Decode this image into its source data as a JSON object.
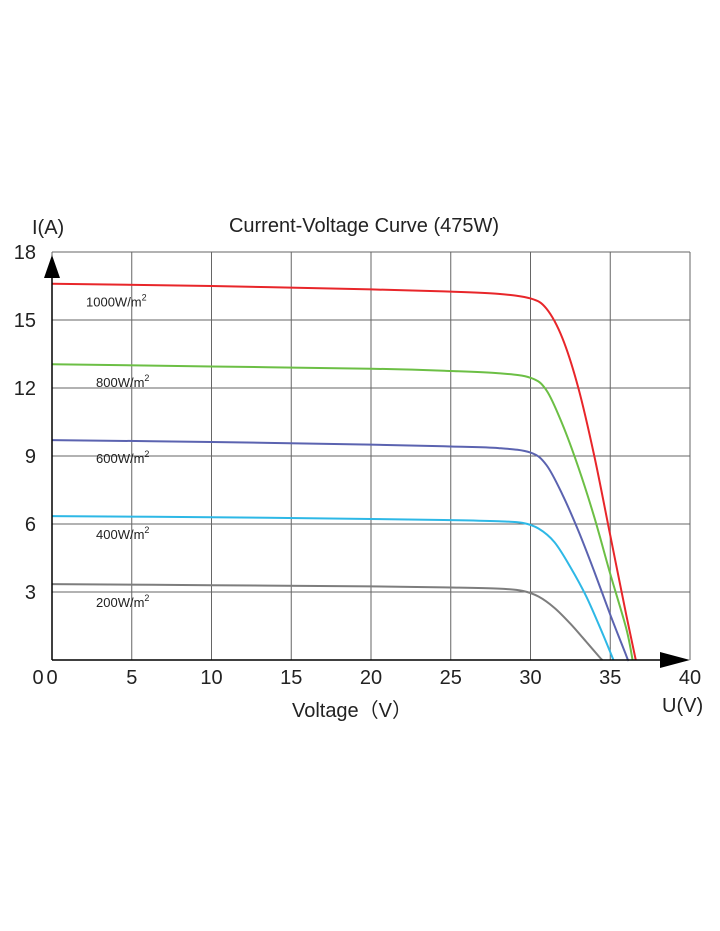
{
  "chart_data": {
    "type": "line",
    "title": "Current-Voltage  Curve (475W)",
    "xlabel": "Voltage（V）",
    "ylabel": "I(A)",
    "x_axis_end_label": "U(V)",
    "xlim": [
      0,
      40
    ],
    "ylim": [
      0,
      18
    ],
    "x_ticks": [
      "0",
      "5",
      "10",
      "15",
      "20",
      "25",
      "30",
      "35",
      "40"
    ],
    "y_ticks": [
      "18",
      "15",
      "12",
      "9",
      "6",
      "3"
    ],
    "grid": true,
    "series": [
      {
        "name": "1000W/m",
        "superscript": "2",
        "color": "#e8262a",
        "points": [
          [
            0,
            16.6
          ],
          [
            10,
            16.5
          ],
          [
            20,
            16.35
          ],
          [
            25,
            16.25
          ],
          [
            28,
            16.15
          ],
          [
            30,
            15.95
          ],
          [
            31,
            15.5
          ],
          [
            32,
            14.2
          ],
          [
            33,
            12.0
          ],
          [
            34,
            9.0
          ],
          [
            35,
            5.5
          ],
          [
            36,
            2.0
          ],
          [
            36.6,
            0
          ]
        ]
      },
      {
        "name": "800W/m",
        "superscript": "2",
        "color": "#6cbf45",
        "points": [
          [
            0,
            13.05
          ],
          [
            10,
            12.95
          ],
          [
            20,
            12.85
          ],
          [
            25,
            12.75
          ],
          [
            28,
            12.65
          ],
          [
            30,
            12.45
          ],
          [
            31,
            11.9
          ],
          [
            32,
            10.4
          ],
          [
            33,
            8.5
          ],
          [
            34,
            6.3
          ],
          [
            35,
            3.8
          ],
          [
            36,
            1.4
          ],
          [
            36.4,
            0
          ]
        ]
      },
      {
        "name": "600W/m",
        "superscript": "2",
        "color": "#5b63b0",
        "points": [
          [
            0,
            9.7
          ],
          [
            10,
            9.62
          ],
          [
            20,
            9.5
          ],
          [
            25,
            9.42
          ],
          [
            28,
            9.35
          ],
          [
            30,
            9.15
          ],
          [
            31,
            8.6
          ],
          [
            32,
            7.3
          ],
          [
            33,
            5.7
          ],
          [
            34,
            3.9
          ],
          [
            35,
            2.0
          ],
          [
            36,
            0.2
          ],
          [
            36.1,
            0
          ]
        ]
      },
      {
        "name": "400W/m",
        "superscript": "2",
        "color": "#2eb8e6",
        "points": [
          [
            0,
            6.35
          ],
          [
            10,
            6.3
          ],
          [
            20,
            6.22
          ],
          [
            25,
            6.17
          ],
          [
            28,
            6.12
          ],
          [
            29.5,
            6.05
          ],
          [
            30.5,
            5.8
          ],
          [
            31.5,
            5.2
          ],
          [
            32.5,
            4.1
          ],
          [
            33.5,
            2.8
          ],
          [
            34.5,
            1.2
          ],
          [
            35.2,
            0
          ]
        ]
      },
      {
        "name": "200W/m",
        "superscript": "2",
        "color": "#7d7d7d",
        "points": [
          [
            0,
            3.35
          ],
          [
            10,
            3.3
          ],
          [
            20,
            3.25
          ],
          [
            25,
            3.2
          ],
          [
            28,
            3.15
          ],
          [
            29.5,
            3.05
          ],
          [
            30.5,
            2.8
          ],
          [
            31.5,
            2.3
          ],
          [
            32.5,
            1.6
          ],
          [
            33.5,
            0.8
          ],
          [
            34.3,
            0.15
          ],
          [
            34.5,
            0
          ]
        ]
      }
    ]
  }
}
